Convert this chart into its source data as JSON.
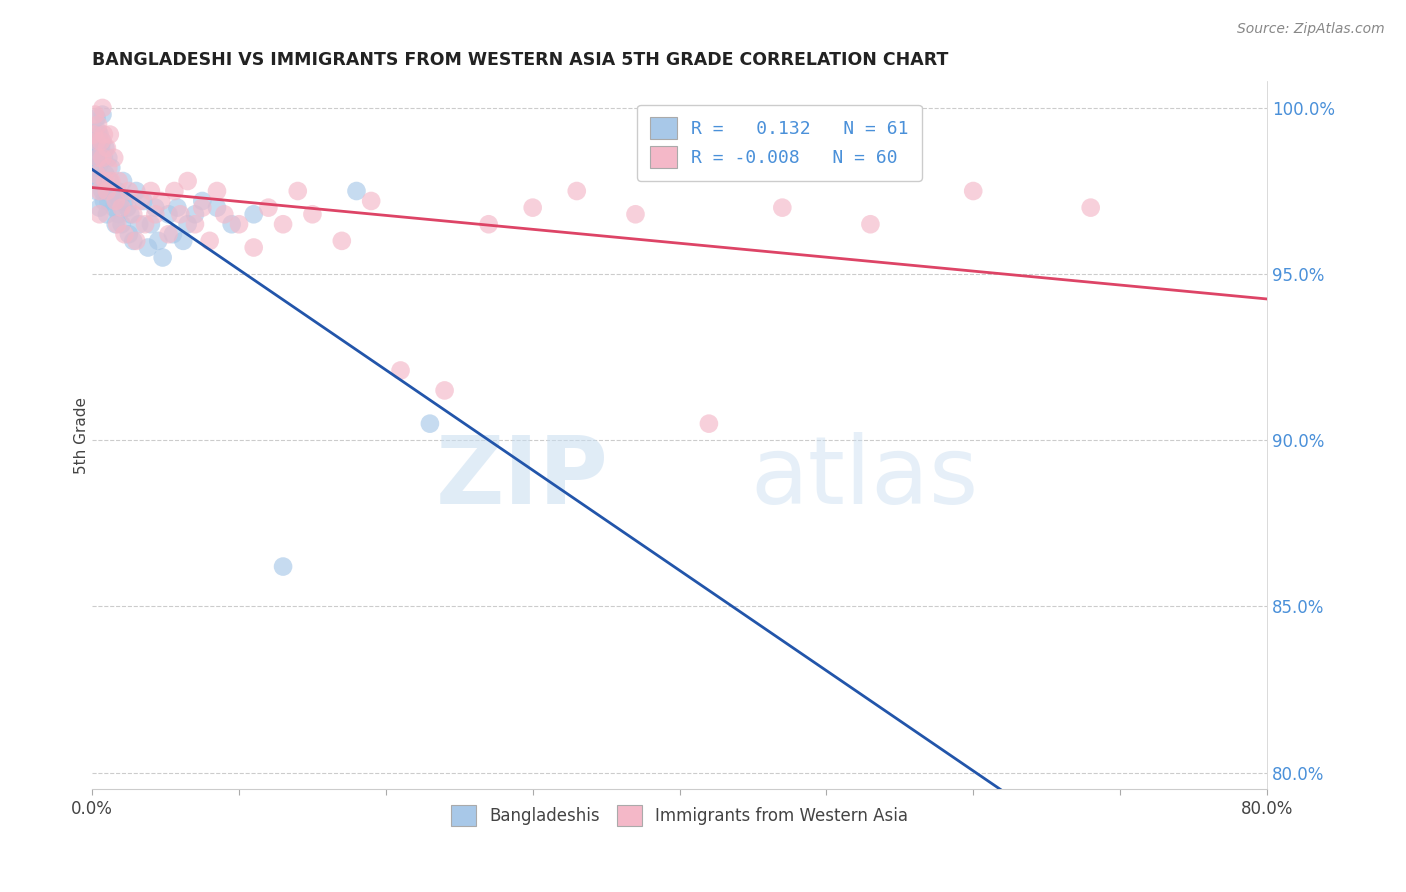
{
  "title": "BANGLADESHI VS IMMIGRANTS FROM WESTERN ASIA 5TH GRADE CORRELATION CHART",
  "source": "Source: ZipAtlas.com",
  "ylabel": "5th Grade",
  "ylabel_right_ticks": [
    "100.0%",
    "95.0%",
    "90.0%",
    "85.0%",
    "80.0%"
  ],
  "ylabel_right_vals": [
    1.0,
    0.95,
    0.9,
    0.85,
    0.8
  ],
  "legend_label_blue": "Bangladeshis",
  "legend_label_pink": "Immigrants from Western Asia",
  "R_blue": 0.132,
  "N_blue": 61,
  "R_pink": -0.008,
  "N_pink": 60,
  "blue_color": "#a8c8e8",
  "pink_color": "#f4b8c8",
  "line_blue": "#2255aa",
  "line_pink": "#dd4466",
  "watermark_zip": "ZIP",
  "watermark_atlas": "atlas",
  "blue_x": [
    0.001,
    0.002,
    0.002,
    0.003,
    0.003,
    0.003,
    0.004,
    0.004,
    0.004,
    0.005,
    0.005,
    0.005,
    0.006,
    0.006,
    0.007,
    0.007,
    0.007,
    0.008,
    0.008,
    0.009,
    0.009,
    0.01,
    0.01,
    0.011,
    0.011,
    0.012,
    0.013,
    0.014,
    0.015,
    0.016,
    0.017,
    0.018,
    0.019,
    0.02,
    0.021,
    0.022,
    0.024,
    0.025,
    0.026,
    0.028,
    0.03,
    0.032,
    0.035,
    0.038,
    0.04,
    0.043,
    0.045,
    0.048,
    0.052,
    0.055,
    0.058,
    0.062,
    0.065,
    0.07,
    0.075,
    0.085,
    0.095,
    0.11,
    0.13,
    0.18,
    0.23
  ],
  "blue_y": [
    0.99,
    0.985,
    0.982,
    0.997,
    0.988,
    0.975,
    0.993,
    0.985,
    0.978,
    0.992,
    0.983,
    0.97,
    0.988,
    0.978,
    0.998,
    0.99,
    0.975,
    0.985,
    0.972,
    0.988,
    0.98,
    0.975,
    0.968,
    0.985,
    0.972,
    0.978,
    0.982,
    0.975,
    0.97,
    0.965,
    0.975,
    0.968,
    0.972,
    0.965,
    0.978,
    0.972,
    0.97,
    0.962,
    0.968,
    0.96,
    0.975,
    0.965,
    0.972,
    0.958,
    0.965,
    0.97,
    0.96,
    0.955,
    0.968,
    0.962,
    0.97,
    0.96,
    0.965,
    0.968,
    0.972,
    0.97,
    0.965,
    0.968,
    0.862,
    0.975,
    0.905
  ],
  "pink_x": [
    0.001,
    0.002,
    0.003,
    0.003,
    0.004,
    0.004,
    0.005,
    0.005,
    0.006,
    0.007,
    0.007,
    0.008,
    0.009,
    0.01,
    0.01,
    0.011,
    0.012,
    0.013,
    0.015,
    0.016,
    0.017,
    0.018,
    0.02,
    0.022,
    0.025,
    0.028,
    0.03,
    0.033,
    0.036,
    0.04,
    0.043,
    0.047,
    0.052,
    0.056,
    0.06,
    0.065,
    0.07,
    0.075,
    0.08,
    0.085,
    0.09,
    0.1,
    0.11,
    0.12,
    0.13,
    0.14,
    0.15,
    0.17,
    0.19,
    0.21,
    0.24,
    0.27,
    0.3,
    0.33,
    0.37,
    0.42,
    0.47,
    0.53,
    0.6,
    0.68
  ],
  "pink_y": [
    0.992,
    0.998,
    0.99,
    0.98,
    0.995,
    0.985,
    0.975,
    0.968,
    0.99,
    1.0,
    0.985,
    0.992,
    0.978,
    0.988,
    0.975,
    0.982,
    0.992,
    0.978,
    0.985,
    0.972,
    0.965,
    0.978,
    0.97,
    0.962,
    0.975,
    0.968,
    0.96,
    0.972,
    0.965,
    0.975,
    0.968,
    0.972,
    0.962,
    0.975,
    0.968,
    0.978,
    0.965,
    0.97,
    0.96,
    0.975,
    0.968,
    0.965,
    0.958,
    0.97,
    0.965,
    0.975,
    0.968,
    0.96,
    0.972,
    0.921,
    0.915,
    0.965,
    0.97,
    0.975,
    0.968,
    0.905,
    0.97,
    0.965,
    0.975,
    0.97
  ]
}
